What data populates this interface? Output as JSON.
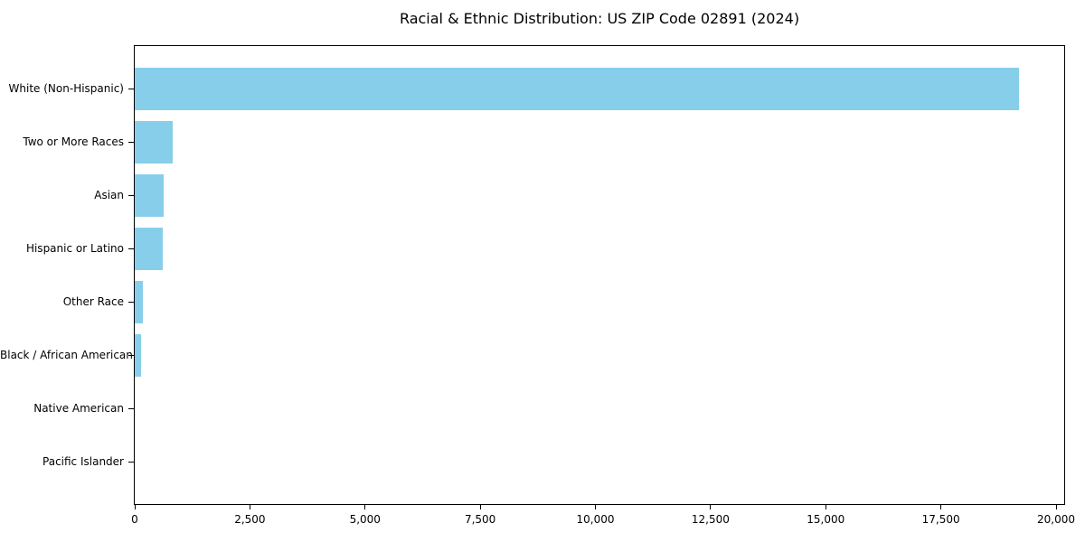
{
  "chart_data": {
    "type": "bar",
    "orientation": "horizontal",
    "title": "Racial & Ethnic Distribution: US ZIP Code 02891 (2024)",
    "categories": [
      "White (Non-Hispanic)",
      "Two or More Races",
      "Asian",
      "Hispanic or Latino",
      "Other Race",
      "Black / African American",
      "Native American",
      "Pacific Islander"
    ],
    "values": [
      19200,
      820,
      630,
      600,
      180,
      130,
      0,
      0
    ],
    "bar_color": "#87CEEB",
    "axis_color": "#000000",
    "text_color": "#000000",
    "background_color": "#ffffff",
    "xlim": [
      0,
      20176
    ],
    "x_ticks": [
      0,
      2500,
      5000,
      7500,
      10000,
      12500,
      15000,
      17500,
      20000
    ],
    "x_tick_labels": [
      "0",
      "2,500",
      "5,000",
      "7,500",
      "10,000",
      "12,500",
      "15,000",
      "17,500",
      "20,000"
    ],
    "xlabel": "",
    "ylabel": "",
    "grid": false,
    "legend": null
  }
}
